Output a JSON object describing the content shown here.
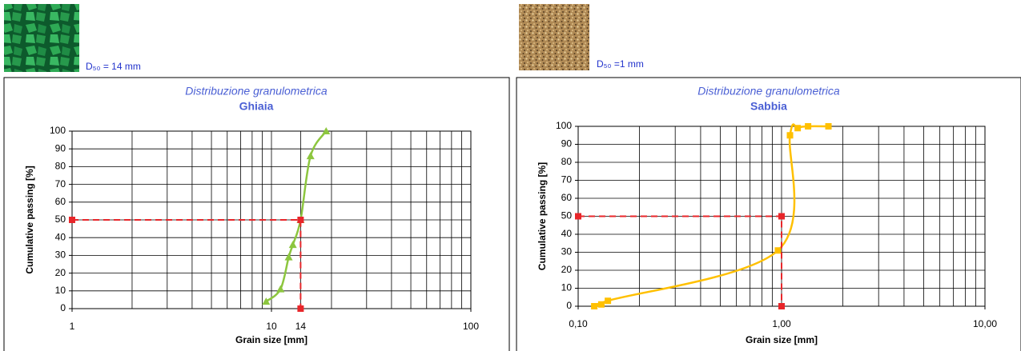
{
  "chart_data": [
    {
      "type": "line",
      "caption": "D₅₀ = 14 mm",
      "title": "Distribuzione granulometrica",
      "subtitle": "Ghiaia",
      "xlabel": "Grain size [mm]",
      "ylabel": "Cumulative passing [%]",
      "xscale": "log",
      "grid": true,
      "xlim": [
        1,
        100
      ],
      "ylim": [
        0,
        100
      ],
      "xticks": [
        1,
        10,
        14,
        100
      ],
      "yticks": [
        0,
        10,
        20,
        30,
        40,
        50,
        60,
        70,
        80,
        90,
        100
      ],
      "series": [
        {
          "color": "#8dc63f",
          "marker": "triangle",
          "dashed": false,
          "x": [
            9.4,
            11.1,
            12.2,
            12.8,
            14,
            15.7,
            18.8
          ],
          "values": [
            4,
            11,
            29,
            36,
            50,
            86,
            100
          ]
        },
        {
          "color": "#e8262a",
          "marker": "square",
          "dashed": true,
          "x": [
            1,
            14,
            14
          ],
          "values": [
            50,
            50,
            0
          ]
        }
      ]
    },
    {
      "type": "line",
      "caption": "D₅₀ =1 mm",
      "title": "Distribuzione granulometrica",
      "subtitle": "Sabbia",
      "xlabel": "Grain size [mm]",
      "ylabel": "Cumulative passing [%]",
      "xscale": "log",
      "grid": true,
      "xlim": [
        0.1,
        10
      ],
      "ylim": [
        0,
        100
      ],
      "xticks": [
        {
          "value": 0.1,
          "label": "0,10"
        },
        {
          "value": 1,
          "label": "1,00"
        },
        {
          "value": 10,
          "label": "10,00"
        }
      ],
      "yticks": [
        0,
        10,
        20,
        30,
        40,
        50,
        60,
        70,
        80,
        90,
        100
      ],
      "series": [
        {
          "color": "#ffc000",
          "marker": "square",
          "dashed": false,
          "x": [
            0.12,
            0.13,
            0.14,
            0.96,
            1.1,
            1.2,
            1.35,
            1.7
          ],
          "values": [
            0,
            1,
            3,
            31,
            95,
            99,
            100,
            100
          ]
        },
        {
          "color": "#e8262a",
          "marker": "square",
          "dashed": true,
          "x": [
            0.1,
            1,
            1
          ],
          "values": [
            50,
            50,
            0
          ]
        }
      ]
    }
  ]
}
